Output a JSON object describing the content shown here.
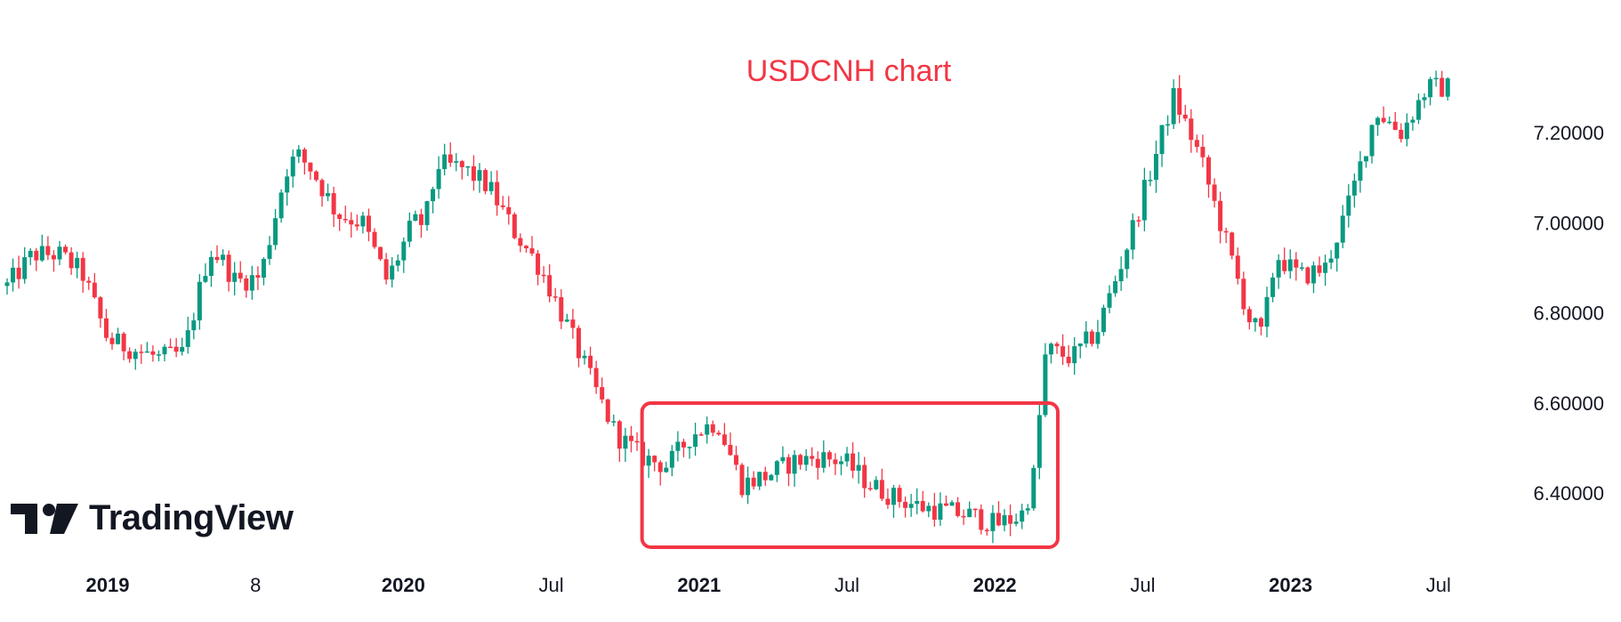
{
  "chart_data": {
    "type": "candlestick",
    "title": "USDCNH chart",
    "title_color": "#f23645",
    "up_color": "#089981",
    "down_color": "#f23645",
    "highlight_box_color": "#f23645",
    "y_range": [
      6.27,
      7.4
    ],
    "x_range": [
      "2018-12-01",
      "2023-11-01"
    ],
    "y_ticks": [
      "7.20000",
      "7.00000",
      "6.80000",
      "6.60000",
      "6.40000"
    ],
    "x_ticks": [
      {
        "label": "2019",
        "bold": true
      },
      {
        "label": "8",
        "bold": false
      },
      {
        "label": "2020",
        "bold": true
      },
      {
        "label": "Jul",
        "bold": false
      },
      {
        "label": "2021",
        "bold": true
      },
      {
        "label": "Jul",
        "bold": false
      },
      {
        "label": "2022",
        "bold": true
      },
      {
        "label": "Jul",
        "bold": false
      },
      {
        "label": "2023",
        "bold": true
      },
      {
        "label": "Jul",
        "bold": false
      }
    ],
    "highlight_box": {
      "x_start": "2021-01-01",
      "x_end": "2022-05-15",
      "y_low": 6.28,
      "y_high": 6.6
    },
    "close_path": [
      [
        "2018-12-01",
        6.86
      ],
      [
        "2019-01-01",
        6.93
      ],
      [
        "2019-02-01",
        6.93
      ],
      [
        "2019-03-01",
        6.89
      ],
      [
        "2019-04-01",
        6.74
      ],
      [
        "2019-05-01",
        6.72
      ],
      [
        "2019-06-01",
        6.7
      ],
      [
        "2019-07-01",
        6.71
      ],
      [
        "2019-08-01",
        6.94
      ],
      [
        "2019-08-15",
        6.92
      ],
      [
        "2019-09-01",
        6.87
      ],
      [
        "2019-10-01",
        6.88
      ],
      [
        "2019-11-01",
        7.12
      ],
      [
        "2019-11-15",
        7.15
      ],
      [
        "2019-12-01",
        7.12
      ],
      [
        "2020-01-01",
        7.02
      ],
      [
        "2020-02-01",
        7.0
      ],
      [
        "2020-03-01",
        6.87
      ],
      [
        "2020-04-01",
        7.0
      ],
      [
        "2020-04-15",
        7.0
      ],
      [
        "2020-05-01",
        7.13
      ],
      [
        "2020-06-01",
        7.12
      ],
      [
        "2020-07-01",
        7.08
      ],
      [
        "2020-08-01",
        6.98
      ],
      [
        "2020-09-01",
        6.9
      ],
      [
        "2020-10-01",
        6.78
      ],
      [
        "2020-11-01",
        6.65
      ],
      [
        "2020-12-01",
        6.53
      ],
      [
        "2021-01-01",
        6.48
      ],
      [
        "2021-02-01",
        6.46
      ],
      [
        "2021-03-01",
        6.53
      ],
      [
        "2021-04-01",
        6.56
      ],
      [
        "2021-05-01",
        6.42
      ],
      [
        "2021-06-01",
        6.44
      ],
      [
        "2021-07-01",
        6.47
      ],
      [
        "2021-08-01",
        6.48
      ],
      [
        "2021-09-01",
        6.47
      ],
      [
        "2021-10-01",
        6.42
      ],
      [
        "2021-11-01",
        6.39
      ],
      [
        "2021-12-01",
        6.37
      ],
      [
        "2022-01-01",
        6.36
      ],
      [
        "2022-02-01",
        6.35
      ],
      [
        "2022-03-01",
        6.33
      ],
      [
        "2022-04-01",
        6.35
      ],
      [
        "2022-04-15",
        6.42
      ],
      [
        "2022-05-01",
        6.72
      ],
      [
        "2022-06-01",
        6.7
      ],
      [
        "2022-07-01",
        6.76
      ],
      [
        "2022-08-01",
        6.92
      ],
      [
        "2022-09-01",
        7.1
      ],
      [
        "2022-10-01",
        7.28
      ],
      [
        "2022-11-01",
        7.15
      ],
      [
        "2022-12-01",
        6.97
      ],
      [
        "2023-01-01",
        6.78
      ],
      [
        "2023-01-15",
        6.75
      ],
      [
        "2023-02-01",
        6.93
      ],
      [
        "2023-03-01",
        6.88
      ],
      [
        "2023-04-01",
        6.9
      ],
      [
        "2023-05-01",
        7.05
      ],
      [
        "2023-06-01",
        7.25
      ],
      [
        "2023-07-01",
        7.2
      ],
      [
        "2023-08-01",
        7.3
      ],
      [
        "2023-09-01",
        7.3
      ]
    ]
  },
  "branding": {
    "logo_text": "TradingView"
  }
}
